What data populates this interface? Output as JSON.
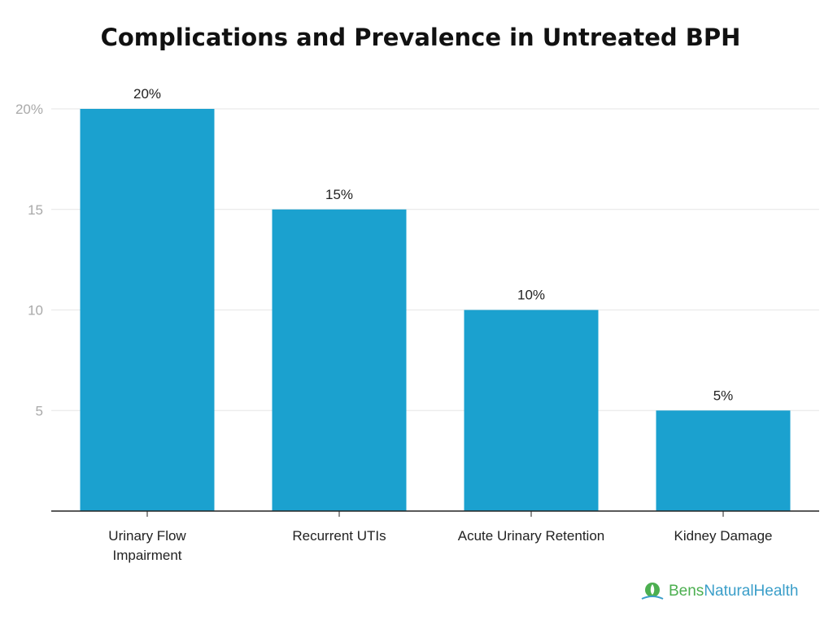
{
  "chart_data": {
    "type": "bar",
    "title": "Complications and Prevalence in Untreated BPH",
    "categories": [
      [
        "Urinary Flow",
        "Impairment"
      ],
      [
        "Recurrent UTIs"
      ],
      [
        "Acute Urinary Retention"
      ],
      [
        "Kidney Damage"
      ]
    ],
    "values": [
      20,
      15,
      10,
      5
    ],
    "data_labels": [
      "20%",
      "15%",
      "10%",
      "5%"
    ],
    "ylim": [
      0,
      20
    ],
    "y_ticks": [
      {
        "value": 20,
        "label": "20%"
      },
      {
        "value": 15,
        "label": "15"
      },
      {
        "value": 10,
        "label": "10"
      },
      {
        "value": 5,
        "label": "5"
      }
    ],
    "xlabel": "",
    "ylabel": "",
    "grid": true,
    "legend": "none",
    "bar_color": "#1ba1cf",
    "axis_color": "#222222",
    "grid_color": "#e6e6e6"
  },
  "branding": {
    "name_part1": "Bens",
    "name_part2": "NaturalHealth",
    "color_part1": "#4caf50",
    "color_part2": "#3a9ec9",
    "icon": "leaf-drop-icon"
  }
}
